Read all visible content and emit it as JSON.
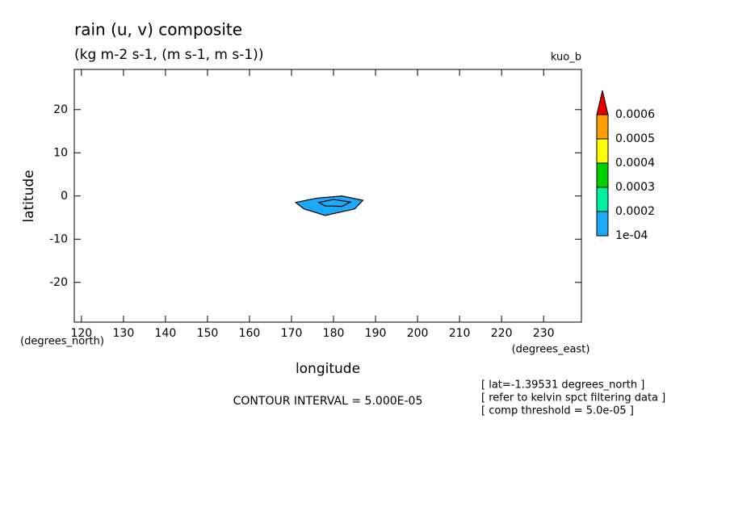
{
  "chart_data": {
    "type": "contour",
    "title": "rain (u, v) composite",
    "subtitle": "(kg m-2 s-1, (m s-1, m s-1))",
    "dataset": "kuo_b",
    "xlabel": "longitude",
    "ylabel": "latitude",
    "xunits": "(degrees_east)",
    "yunits": "(degrees_north)",
    "xlim": [
      118.3,
      239
    ],
    "ylim": [
      -29.2,
      29.3
    ],
    "xticks": [
      120,
      130,
      140,
      150,
      160,
      170,
      180,
      190,
      200,
      210,
      220,
      230
    ],
    "yticks": [
      -20,
      -10,
      0,
      10,
      20
    ],
    "contours": [
      {
        "color": "#1ea8f8",
        "lon": [
          171,
          176,
          182,
          187,
          185,
          178,
          173
        ],
        "lat": [
          -1.5,
          -0.5,
          0,
          -1,
          -3,
          -4.5,
          -3
        ]
      },
      {
        "color": "#1ea8f8",
        "lon": [
          176.5,
          180,
          184,
          182,
          178
        ],
        "lat": [
          -1.5,
          -0.8,
          -1.4,
          -2.4,
          -2.3
        ]
      }
    ],
    "colorbar": {
      "levels": [
        {
          "value": 0.0001,
          "label": "1e-04"
        },
        0.0002,
        0.0003,
        0.0004,
        0.0005,
        0.0006
      ],
      "colors": [
        "#1ea8f8",
        "#00f0a0",
        "#00d200",
        "#ffff00",
        "#ff9e00",
        "#e80000"
      ]
    },
    "contour_interval": "CONTOUR INTERVAL = 5.000E-05",
    "notes": [
      "[ lat=-1.39531 degrees_north ]",
      "[ refer to kelvin spct filtering data ]",
      "[ comp threshold = 5.0e-05 ]"
    ]
  }
}
